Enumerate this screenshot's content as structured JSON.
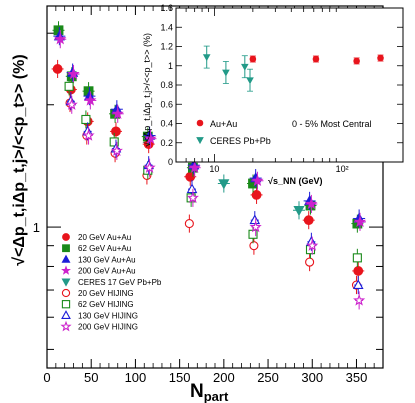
{
  "chart_data": {
    "type": "scatter",
    "xlabel": "N",
    "xlabel_sub": "part",
    "ylabel": "√<Δp_t,iΔp_t,j>/<<p_t>> (%)",
    "xlim": [
      0,
      380
    ],
    "ylim_log": [
      0.45,
      3.5
    ],
    "x_ticks": [
      "0",
      "50",
      "100",
      "150",
      "200",
      "250",
      "300",
      "350"
    ],
    "y_ticks": [
      "1"
    ],
    "series": [
      {
        "name": "20 GeV Au+Au",
        "color": "#e8141c",
        "marker": "circle",
        "filled": true,
        "x": [
          12,
          27,
          46,
          78,
          115,
          162,
          237,
          296,
          352
        ],
        "y": [
          2.45,
          2.18,
          1.82,
          1.72,
          1.6,
          1.33,
          1.2,
          1.04,
          0.78
        ]
      },
      {
        "name": "62 GeV Au+Au",
        "color": "#1a8a1a",
        "marker": "square",
        "filled": true,
        "x": [
          13,
          28,
          47,
          77,
          114,
          165,
          233,
          298,
          351
        ],
        "y": [
          3.05,
          2.35,
          2.16,
          1.9,
          1.67,
          1.4,
          1.28,
          1.13,
          1.02
        ]
      },
      {
        "name": "130 GeV Au+Au",
        "color": "#1c1cd8",
        "marker": "triangle",
        "filled": true,
        "x": [
          14,
          29,
          48,
          79,
          116,
          166,
          236,
          297,
          353
        ],
        "y": [
          2.95,
          2.4,
          2.1,
          1.95,
          1.68,
          1.42,
          1.32,
          1.16,
          1.05
        ]
      },
      {
        "name": "200 GeV Au+Au",
        "color": "#cc22cc",
        "marker": "star",
        "filled": true,
        "x": [
          15,
          30,
          49,
          80,
          117,
          167,
          238,
          299,
          354
        ],
        "y": [
          2.9,
          2.38,
          2.05,
          1.9,
          1.65,
          1.4,
          1.3,
          1.14,
          1.03
        ]
      },
      {
        "name": "CERES 17 GeV Pb+Pb",
        "color": "#229a88",
        "marker": "triangle-down",
        "filled": true,
        "x": [
          200,
          285
        ],
        "y": [
          1.28,
          1.1
        ]
      },
      {
        "name": "20 GeV HIJING",
        "color": "#e8141c",
        "marker": "circle",
        "filled": false,
        "x": [
          26,
          45,
          77,
          113,
          161,
          234,
          297,
          350
        ],
        "y": [
          2.02,
          1.68,
          1.52,
          1.34,
          1.02,
          0.9,
          0.82,
          0.72
        ]
      },
      {
        "name": "62 GeV HIJING",
        "color": "#1a8a1a",
        "marker": "square",
        "filled": false,
        "x": [
          25,
          44,
          76,
          114,
          163,
          233,
          298,
          351
        ],
        "y": [
          2.22,
          1.84,
          1.62,
          1.38,
          1.18,
          0.96,
          0.88,
          0.84
        ]
      },
      {
        "name": "130 GeV HIJING",
        "color": "#1c1cd8",
        "marker": "triangle",
        "filled": false,
        "x": [
          27,
          46,
          78,
          115,
          164,
          235,
          299,
          352
        ],
        "y": [
          2.04,
          1.72,
          1.56,
          1.42,
          1.24,
          1.04,
          0.92,
          0.72
        ]
      },
      {
        "name": "200 GeV HIJING",
        "color": "#cc22cc",
        "marker": "star",
        "filled": false,
        "x": [
          28,
          47,
          79,
          116,
          165,
          236,
          300,
          353
        ],
        "y": [
          2.0,
          1.68,
          1.54,
          1.4,
          1.18,
          1.0,
          0.9,
          0.66
        ]
      }
    ],
    "legend_position": "bottom-left",
    "inset": {
      "xlabel": "√s_NN (GeV)",
      "ylabel": "√<Δp_t,iΔp_t,j>/<<p_t>> (%)",
      "x_log": true,
      "xlim": [
        5,
        300
      ],
      "ylim": [
        0,
        1.6
      ],
      "y_ticks": [
        "0",
        "0.2",
        "0.4",
        "0.6",
        "0.8",
        "1",
        "1.2",
        "1.4",
        "1.6"
      ],
      "x_ticks": [
        "10",
        "10²"
      ],
      "annotation": "0 - 5% Most Central",
      "series": [
        {
          "name": "Au+Au",
          "color": "#e8141c",
          "marker": "circle",
          "x": [
            20,
            62.4,
            130,
            200
          ],
          "y": [
            1.07,
            1.07,
            1.05,
            1.08
          ]
        },
        {
          "name": "CERES Pb+Pb",
          "color": "#229a88",
          "marker": "triangle-down",
          "x": [
            8.7,
            12.3,
            17.3,
            19
          ],
          "y": [
            1.09,
            0.93,
            0.99,
            0.85
          ]
        }
      ]
    }
  }
}
